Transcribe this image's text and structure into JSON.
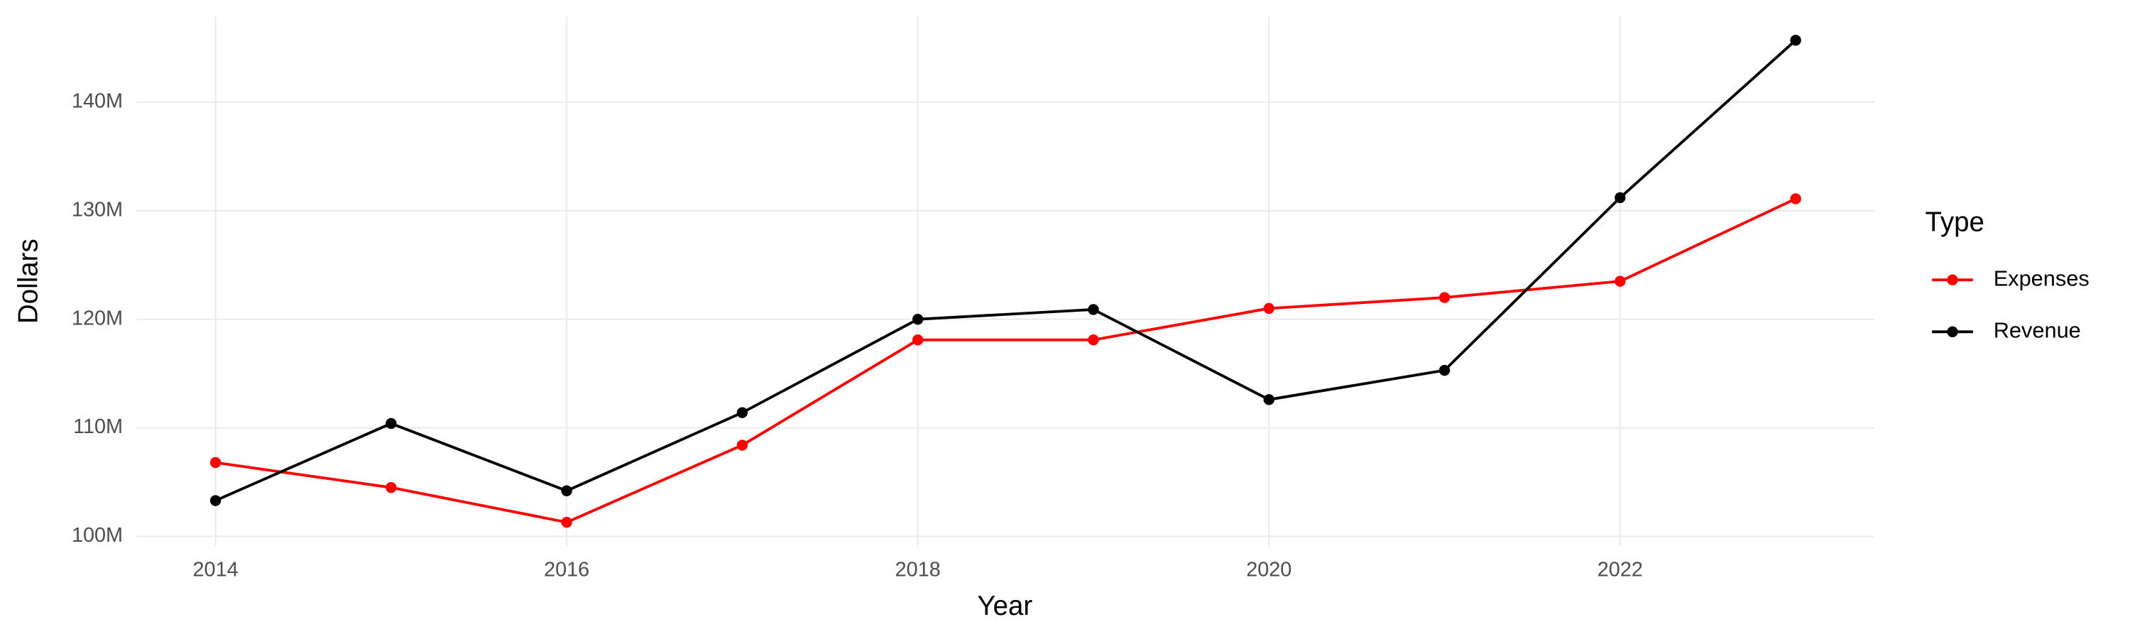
{
  "chart_data": {
    "type": "line",
    "x_label": "Year",
    "y_label": "Dollars",
    "legend_title": "Type",
    "legend_position": "right",
    "grid": true,
    "x": [
      2014,
      2015,
      2016,
      2017,
      2018,
      2019,
      2020,
      2021,
      2022,
      2023
    ],
    "xlim": [
      2013.55,
      2023.45
    ],
    "xticks": [
      2014,
      2016,
      2018,
      2020,
      2022
    ],
    "ylim": [
      99100000,
      147900000
    ],
    "yticks": [
      {
        "value": 100000000,
        "label": "100M"
      },
      {
        "value": 110000000,
        "label": "110M"
      },
      {
        "value": 120000000,
        "label": "120M"
      },
      {
        "value": 130000000,
        "label": "130M"
      },
      {
        "value": 140000000,
        "label": "140M"
      }
    ],
    "series": [
      {
        "name": "Expenses",
        "color": "#ff0000",
        "values": [
          106800000,
          104500000,
          101300000,
          108400000,
          118100000,
          118100000,
          121000000,
          122000000,
          123500000,
          131100000
        ]
      },
      {
        "name": "Revenue",
        "color": "#000000",
        "values": [
          103300000,
          110400000,
          104200000,
          111400000,
          120000000,
          120900000,
          112600000,
          115300000,
          131200000,
          145700000
        ]
      }
    ]
  }
}
